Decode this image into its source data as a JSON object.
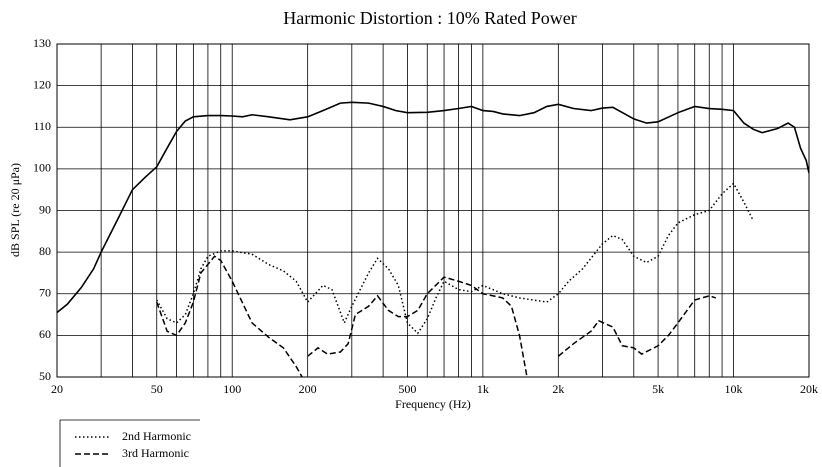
{
  "chart_data": {
    "type": "line",
    "title": "Harmonic Distortion :  10% Rated Power",
    "xlabel": "Frequency (Hz)",
    "ylabel": "dB SPL (re 20 μPa)",
    "xscale": "log",
    "xlim": [
      20,
      20000
    ],
    "ylim": [
      50,
      130
    ],
    "xticks": [
      20,
      50,
      100,
      200,
      500,
      {
        "value": 1000,
        "label": "1k"
      },
      {
        "value": 2000,
        "label": "2k"
      },
      {
        "value": 5000,
        "label": "5k"
      },
      {
        "value": 10000,
        "label": "10k"
      },
      {
        "value": 20000,
        "label": "20k"
      }
    ],
    "xminor": [
      30,
      40,
      60,
      70,
      80,
      90,
      300,
      400,
      600,
      700,
      800,
      900,
      3000,
      4000,
      6000,
      7000,
      8000,
      9000
    ],
    "yticks": [
      50,
      60,
      70,
      80,
      90,
      100,
      110,
      120,
      130
    ],
    "grid": true,
    "legend": "below-left",
    "series": [
      {
        "color": "#000000",
        "dash": "solid",
        "x": [
          20,
          22,
          25,
          28,
          30,
          35,
          40,
          45,
          50,
          55,
          60,
          65,
          70,
          80,
          90,
          100,
          110,
          120,
          140,
          170,
          200,
          230,
          270,
          300,
          350,
          400,
          450,
          500,
          600,
          700,
          800,
          900,
          1000,
          1100,
          1200,
          1400,
          1600,
          1800,
          2000,
          2300,
          2700,
          3000,
          3300,
          4000,
          4500,
          5000,
          6000,
          7000,
          8000,
          9000,
          10000,
          11000,
          12000,
          13000,
          15000,
          16500,
          17500,
          18500,
          19500,
          20000
        ],
        "values": [
          65.5,
          67.5,
          71.5,
          76,
          80,
          88,
          95,
          98,
          100.5,
          105,
          109,
          111.5,
          112.5,
          112.8,
          112.8,
          112.7,
          112.5,
          113,
          112.5,
          111.8,
          112.5,
          114,
          115.8,
          116,
          115.8,
          115,
          114,
          113.5,
          113.6,
          114,
          114.5,
          115,
          114,
          113.8,
          113.2,
          112.8,
          113.5,
          115,
          115.5,
          114.5,
          114,
          114.6,
          114.8,
          112,
          111,
          111.3,
          113.5,
          115,
          114.5,
          114.3,
          114,
          111,
          109.5,
          108.7,
          109.7,
          111,
          110,
          105,
          102,
          99
        ]
      },
      {
        "name": "2nd Harmonic",
        "color": "#000000",
        "dash": "dotted",
        "x": [
          50,
          55,
          60,
          65,
          70,
          75,
          80,
          90,
          100,
          120,
          140,
          160,
          180,
          200,
          230,
          250,
          280,
          300,
          350,
          380,
          420,
          460,
          500,
          550,
          600,
          650,
          700,
          800,
          900,
          1000,
          1200,
          1400,
          1800,
          2000,
          2200,
          2500,
          3000,
          3300,
          3600,
          4000,
          4500,
          5000,
          5500,
          6000,
          7000,
          8000,
          9000,
          10000,
          11000,
          12000
        ],
        "values": [
          68.5,
          64,
          63,
          65,
          70,
          76,
          79,
          80.3,
          80.3,
          79.5,
          77,
          75.5,
          73,
          68,
          72,
          71,
          63,
          67,
          75,
          78.5,
          76,
          72,
          63,
          60.5,
          64,
          69,
          73,
          71,
          70.5,
          72,
          70,
          69,
          68,
          70,
          73,
          76,
          82,
          84,
          83,
          79,
          77.5,
          79,
          84,
          87,
          89,
          90,
          94,
          96.5,
          92,
          87.5
        ]
      },
      {
        "name": "3rd Harmonic",
        "color": "#000000",
        "dash": "dashed",
        "x": [
          50,
          55,
          60,
          65,
          70,
          75,
          85,
          90,
          100,
          120,
          140,
          160,
          180,
          190,
          195,
          200,
          220,
          240,
          270,
          290,
          310,
          350,
          380,
          420,
          460,
          500,
          550,
          600,
          700,
          800,
          900,
          1000,
          1100,
          1200,
          1300,
          1400,
          1500,
          1700,
          2000,
          2300,
          2700,
          2900,
          3300,
          3600,
          4000,
          4300,
          5000,
          5500,
          6000,
          7000,
          8000,
          8500
        ],
        "values": [
          68,
          61,
          60,
          63,
          68,
          75,
          79,
          78,
          73,
          63,
          59.5,
          57,
          52.5,
          50,
          null,
          55,
          57,
          55.5,
          56,
          58,
          65,
          67,
          69.5,
          66,
          64.5,
          64.5,
          66,
          70,
          74,
          73,
          72,
          70,
          69.5,
          69,
          67,
          60,
          50,
          null,
          55,
          58,
          61,
          63.5,
          62,
          57.5,
          57,
          55.5,
          57.5,
          60,
          63,
          68.5,
          69.5,
          69
        ]
      }
    ]
  }
}
